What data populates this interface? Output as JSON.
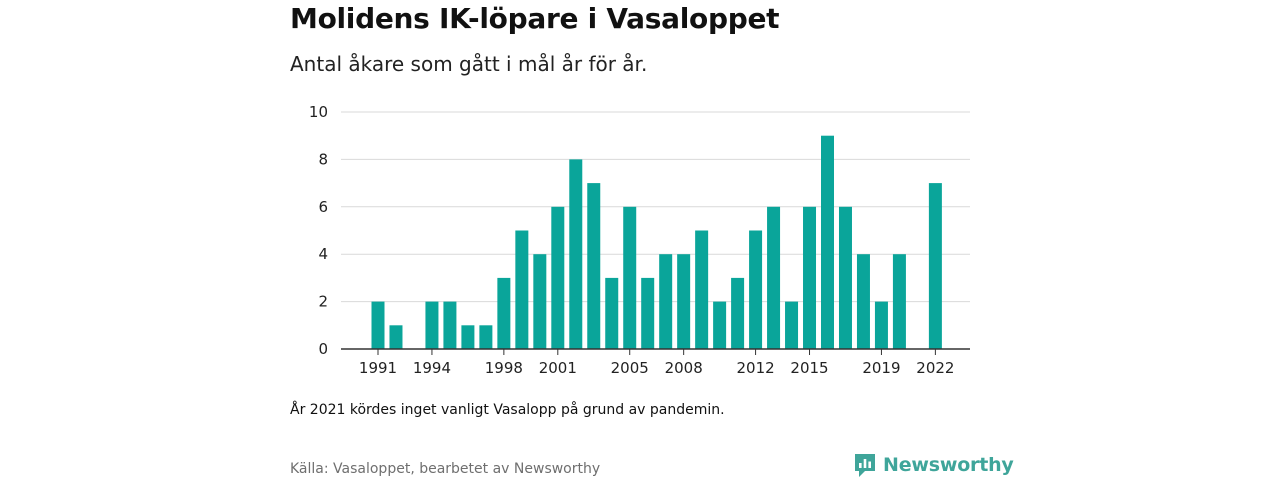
{
  "header": {
    "title": "Molidens IK-löpare i Vasaloppet",
    "subtitle": "Antal åkare som gått i mål år för år."
  },
  "footer": {
    "note": "År 2021 kördes inget vanligt Vasalopp på grund av pandemin.",
    "source": "Källa: Vasaloppet, bearbetet av Newsworthy",
    "brand": "Newsworthy",
    "brand_icon": "newsworthy-logo-icon",
    "brand_color": "#3fa59a"
  },
  "chart_data": {
    "type": "bar",
    "title": "Molidens IK-löpare i Vasaloppet",
    "subtitle": "Antal åkare som gått i mål år för år.",
    "xlabel": "",
    "ylabel": "",
    "categories": [
      1991,
      1992,
      1993,
      1994,
      1995,
      1996,
      1997,
      1998,
      1999,
      2000,
      2001,
      2002,
      2003,
      2004,
      2005,
      2006,
      2007,
      2008,
      2009,
      2010,
      2011,
      2012,
      2013,
      2014,
      2015,
      2016,
      2017,
      2018,
      2019,
      2020,
      2021,
      2022
    ],
    "values": [
      2,
      1,
      0,
      2,
      2,
      1,
      1,
      3,
      5,
      4,
      6,
      8,
      7,
      3,
      6,
      3,
      4,
      4,
      5,
      2,
      3,
      5,
      6,
      2,
      6,
      9,
      6,
      4,
      2,
      4,
      0,
      7
    ],
    "x_tick_labels": [
      "1991",
      "1994",
      "1998",
      "2001",
      "2005",
      "2008",
      "2012",
      "2015",
      "2019",
      "2022"
    ],
    "y_ticks": [
      0,
      2,
      4,
      6,
      8,
      10
    ],
    "ylim": [
      0,
      10
    ],
    "grid": "horizontal",
    "bar_color": "#0aa59a"
  }
}
